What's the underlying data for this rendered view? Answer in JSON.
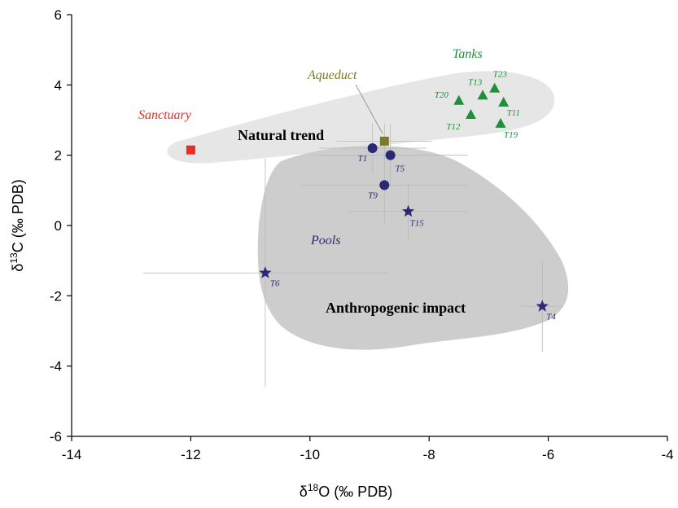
{
  "chart_data": {
    "type": "scatter",
    "title": "",
    "xlabel": "δ18O (‰ PDB)",
    "ylabel": "δ13C (‰ PDB)",
    "xlim": [
      -14,
      -4
    ],
    "ylim": [
      -6,
      6
    ],
    "xticks": [
      "-14",
      "-12",
      "-10",
      "-8",
      "-6",
      "-4"
    ],
    "yticks": [
      "6",
      "4",
      "2",
      "0",
      "-2",
      "-4",
      "-6"
    ],
    "grid": false,
    "regions": [
      {
        "label": "Natural trend",
        "fill": "#e6e6e6"
      },
      {
        "label": "Anthropogenic impact",
        "fill": "#cdcdcd"
      }
    ],
    "groups": [
      {
        "name": "Sanctuary",
        "color": "#ee2a24",
        "marker": "square",
        "points": [
          {
            "label": "",
            "x": -12.0,
            "y": 2.15
          }
        ]
      },
      {
        "name": "Aqueduct",
        "color": "#7b7a2a",
        "marker": "square",
        "points": [
          {
            "label": "",
            "x": -8.75,
            "y": 2.4,
            "xerr": 0.8,
            "yerr": 0.5
          }
        ]
      },
      {
        "name": "Tanks",
        "color": "#1f8f3a",
        "marker": "triangle",
        "points": [
          {
            "label": "T23",
            "x": -6.9,
            "y": 3.9
          },
          {
            "label": "T13",
            "x": -7.1,
            "y": 3.7
          },
          {
            "label": "T20",
            "x": -7.5,
            "y": 3.55
          },
          {
            "label": "T11",
            "x": -6.75,
            "y": 3.5
          },
          {
            "label": "T12",
            "x": -7.3,
            "y": 3.15
          },
          {
            "label": "T19",
            "x": -6.8,
            "y": 2.9
          }
        ]
      },
      {
        "name": "Pools",
        "color": "#2b2875",
        "marker": "circle",
        "points": [
          {
            "label": "T1",
            "x": -8.95,
            "y": 2.2,
            "xerr": 0.9,
            "yerr": 0.7
          },
          {
            "label": "T5",
            "x": -8.65,
            "y": 2.0,
            "xerr": 1.3,
            "yerr": 0.9
          },
          {
            "label": "T9",
            "x": -8.75,
            "y": 1.15,
            "xerr": 1.4,
            "yerr": 1.1
          }
        ]
      },
      {
        "name": "",
        "color": "#2b2875",
        "marker": "star",
        "points": [
          {
            "label": "T15",
            "x": -8.35,
            "y": 0.4,
            "xerr": 1.0,
            "yerr": 0.8
          },
          {
            "label": "T6",
            "x": -10.75,
            "y": -1.35,
            "xerr": 2.05,
            "yerr": 3.25
          },
          {
            "label": "T4",
            "x": -6.1,
            "y": -2.3,
            "xerr": 0.35,
            "yerr": 1.3
          }
        ]
      }
    ]
  }
}
